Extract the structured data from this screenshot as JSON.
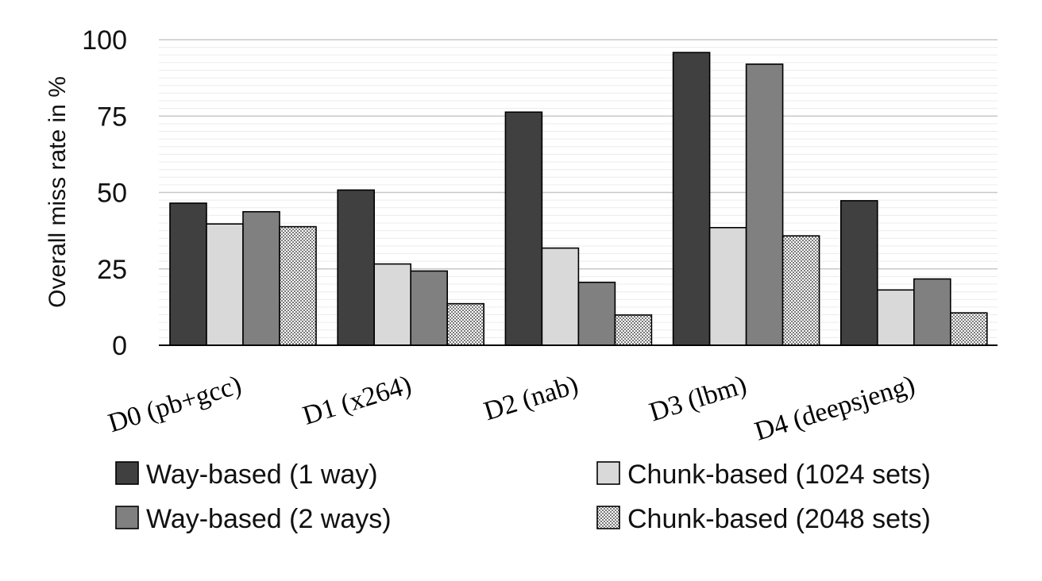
{
  "chart_data": {
    "type": "bar",
    "ylabel": "Overall miss rate in %",
    "ylim": [
      0,
      100
    ],
    "yticks": [
      "0",
      "25",
      "50",
      "75",
      "100"
    ],
    "categories": [
      "D0 (pb+gcc)",
      "D1 (x264)",
      "D2 (nab)",
      "D3 (lbm)",
      "D4 (deepsjeng)"
    ],
    "series": [
      {
        "name": "Way-based (1 way)",
        "color": "#404040",
        "pattern": "solid",
        "values": [
          46.5,
          50.8,
          76.3,
          95.8,
          47.3
        ]
      },
      {
        "name": "Chunk-based (1024 sets)",
        "color": "#d9d9d9",
        "pattern": "solid",
        "values": [
          39.7,
          26.6,
          31.8,
          38.5,
          18.1
        ]
      },
      {
        "name": "Way-based (2 ways)",
        "color": "#808080",
        "pattern": "solid",
        "values": [
          43.7,
          24.3,
          20.6,
          92.0,
          21.7
        ]
      },
      {
        "name": "Chunk-based (2048 sets)",
        "color": "#ffffff",
        "pattern": "crosshatch",
        "values": [
          38.8,
          13.6,
          9.9,
          35.8,
          10.6
        ]
      }
    ],
    "grid": true,
    "legend_position": "bottom"
  },
  "legend": [
    {
      "label": "Way-based (1 way)",
      "series": 0
    },
    {
      "label": "Chunk-based (1024 sets)",
      "series": 1
    },
    {
      "label": "Way-based (2 ways)",
      "series": 2
    },
    {
      "label": "Chunk-based (2048 sets)",
      "series": 3
    }
  ]
}
